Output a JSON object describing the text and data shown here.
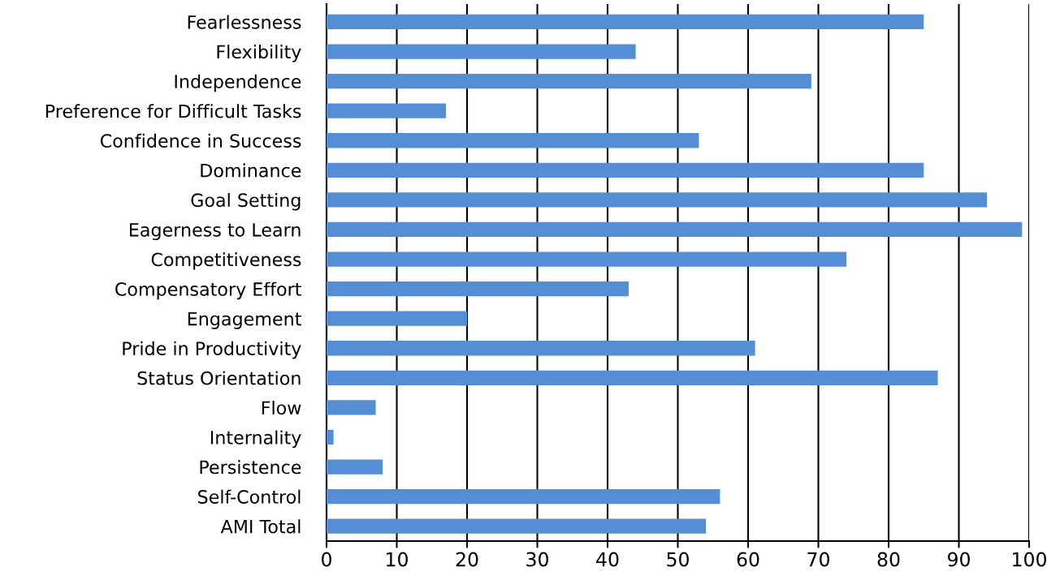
{
  "chart_data": {
    "type": "bar",
    "orientation": "horizontal",
    "categories": [
      "Fearlessness",
      "Flexibility",
      "Independence",
      "Preference for Difficult Tasks",
      "Confidence in Success",
      "Dominance",
      "Goal Setting",
      "Eagerness to Learn",
      "Competitiveness",
      "Compensatory Effort",
      "Engagement",
      "Pride in Productivity",
      "Status Orientation",
      "Flow",
      "Internality",
      "Persistence",
      "Self-Control",
      "AMI Total"
    ],
    "values": [
      85,
      44,
      69,
      17,
      53,
      85,
      94,
      99,
      74,
      43,
      20,
      61,
      87,
      7,
      1,
      8,
      56,
      54
    ],
    "color": "#558ed5",
    "xlim": [
      0,
      100
    ],
    "xticks": [
      0,
      10,
      20,
      30,
      40,
      50,
      60,
      70,
      80,
      90,
      100
    ],
    "grid": "x"
  }
}
